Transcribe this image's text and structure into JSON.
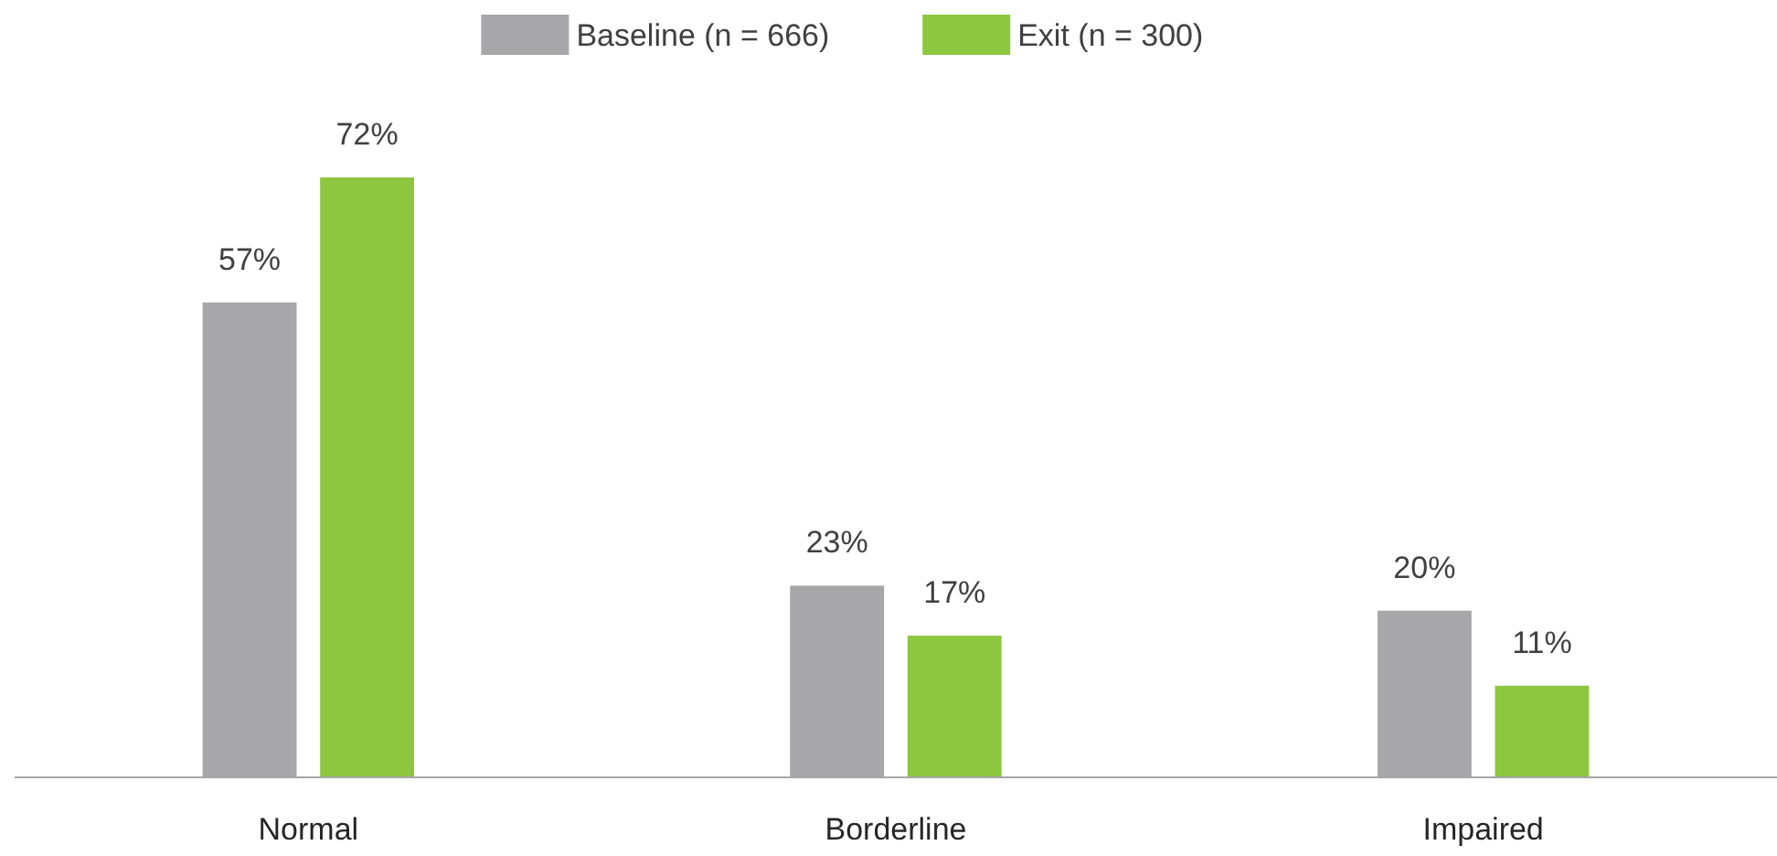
{
  "chart_data": {
    "type": "bar",
    "categories": [
      "Normal",
      "Borderline",
      "Impaired"
    ],
    "series": [
      {
        "name": "Baseline (n = 666)",
        "color": "#a7a7a9",
        "values": [
          57,
          23,
          20
        ],
        "value_labels": [
          "57%",
          "23%",
          "20%"
        ]
      },
      {
        "name": "Exit (n = 300)",
        "color": "#8dc63f",
        "values": [
          72,
          17,
          11
        ],
        "value_labels": [
          "72%",
          "17%",
          "11%"
        ]
      }
    ],
    "legend": "top"
  }
}
